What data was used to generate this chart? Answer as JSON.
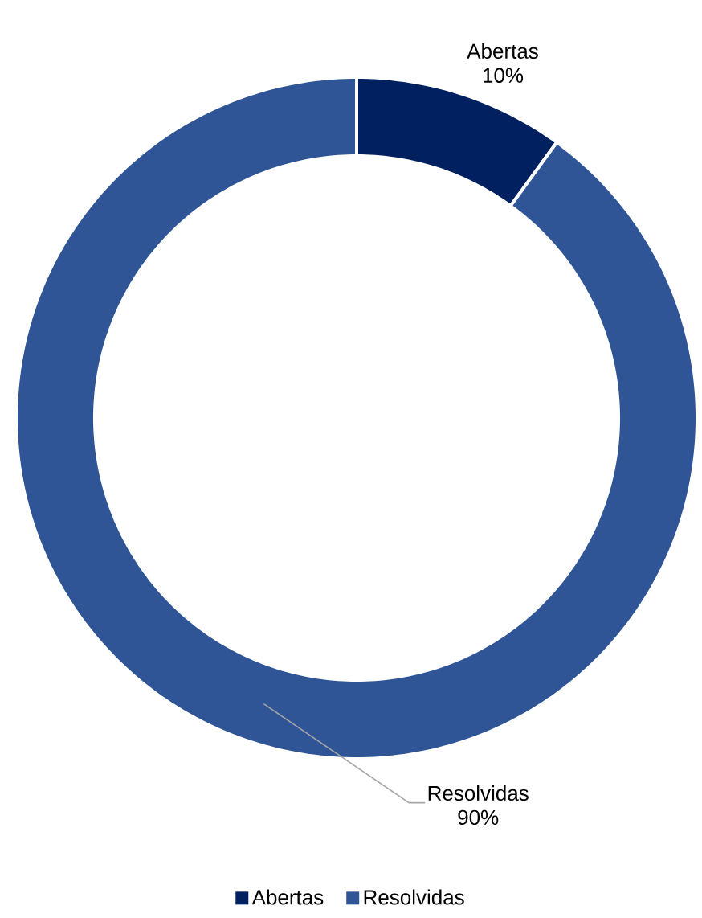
{
  "chart_data": {
    "type": "donut",
    "categories": [
      "Abertas",
      "Resolvidas"
    ],
    "values": [
      10,
      90
    ],
    "value_labels": [
      "10%",
      "90%"
    ],
    "colors": [
      "#002060",
      "#2f5597"
    ],
    "legend": "bottom"
  }
}
